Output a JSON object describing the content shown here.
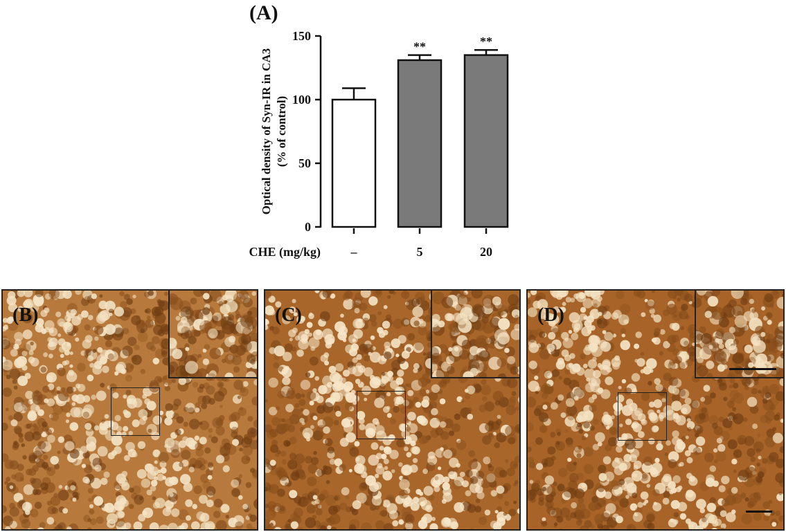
{
  "chart_data": {
    "type": "bar",
    "panel_label": "(A)",
    "xlabel": "CHE (mg/kg)",
    "ylabel_line1": "Optical density of Syn-IR in CA3",
    "ylabel_line2": "(% of control)",
    "categories": [
      "–",
      "5",
      "20"
    ],
    "values": [
      100,
      131,
      135
    ],
    "errors": [
      9,
      4,
      4
    ],
    "significance": [
      "",
      "**",
      "**"
    ],
    "bar_colors": [
      "#ffffff",
      "#7a7a7a",
      "#7a7a7a"
    ],
    "yticks": [
      0,
      50,
      100,
      150
    ],
    "ylim": [
      0,
      150
    ],
    "grid": false
  },
  "panels": [
    {
      "label": "(B)",
      "texture_color": "#b87a3c",
      "light_color": "#f3e3c4"
    },
    {
      "label": "(C)",
      "texture_color": "#a8662a",
      "light_color": "#f6e6c8"
    },
    {
      "label": "(D)",
      "texture_color": "#a86428",
      "light_color": "#f3e2c2"
    }
  ]
}
